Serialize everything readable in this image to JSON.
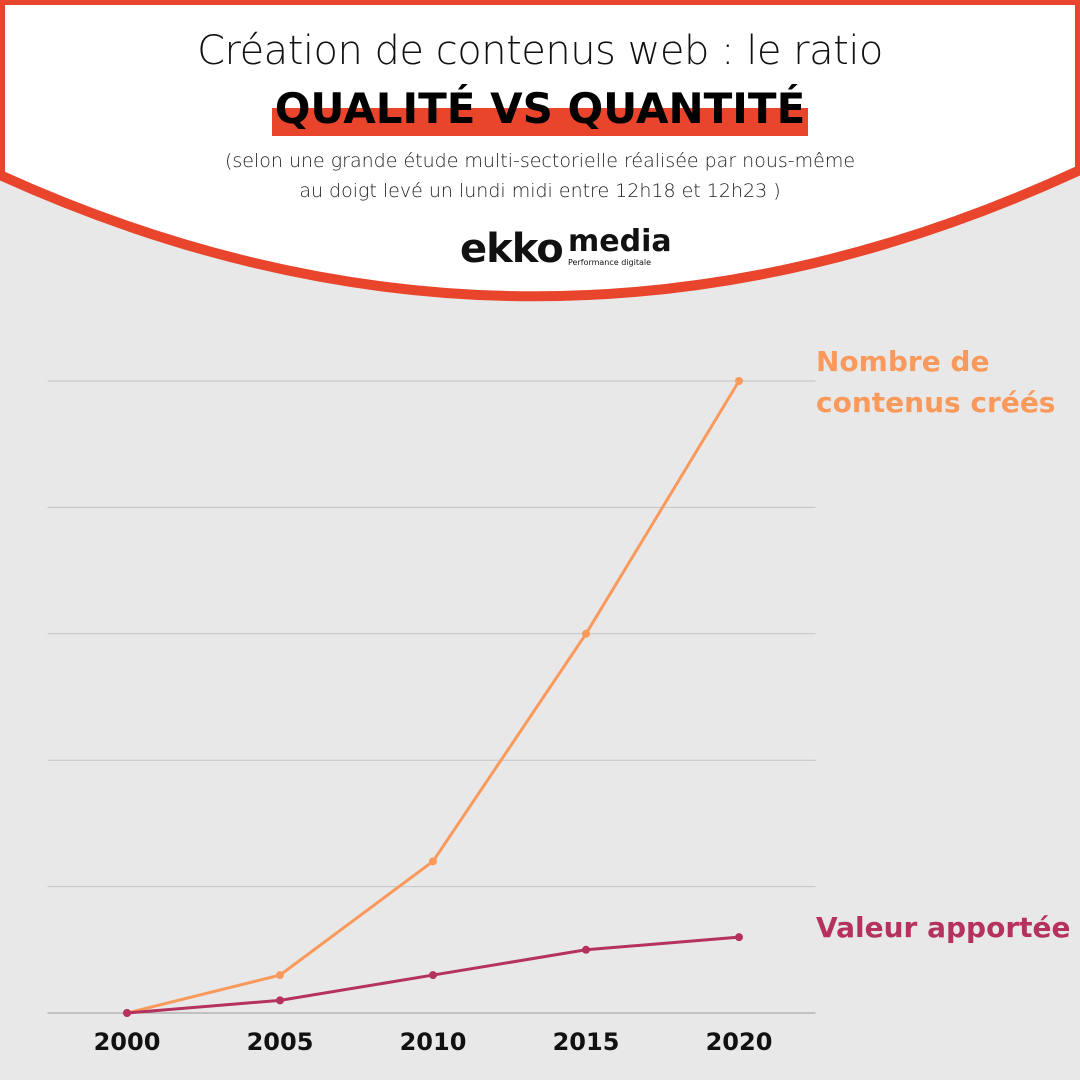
{
  "header": {
    "title": "Création de contenus web : le ratio",
    "highlight": "QUALITÉ VS QUANTITÉ",
    "subtitle": [
      "(selon une grande étude multi-sectorielle réalisée par nous-même",
      "au doigt levé un lundi midi entre 12h18 et 12h23 )"
    ]
  },
  "logo": {
    "name": "ekko",
    "brand": "media",
    "tagline": "Performance digitale"
  },
  "chart_data": {
    "type": "line",
    "categories": [
      "2000",
      "2005",
      "2010",
      "2015",
      "2020"
    ],
    "series": [
      {
        "name": "Nombre de contenus créés",
        "color": "#f99a5c",
        "values": [
          0,
          0.3,
          1.2,
          3,
          5
        ]
      },
      {
        "name": "Valeur apportée",
        "color": "#b5325e",
        "values": [
          0,
          0.1,
          0.3,
          0.5,
          0.6
        ]
      }
    ],
    "ylim": [
      0,
      5
    ],
    "yticks": [
      0,
      1,
      2,
      3,
      4,
      5
    ],
    "grid": true
  }
}
